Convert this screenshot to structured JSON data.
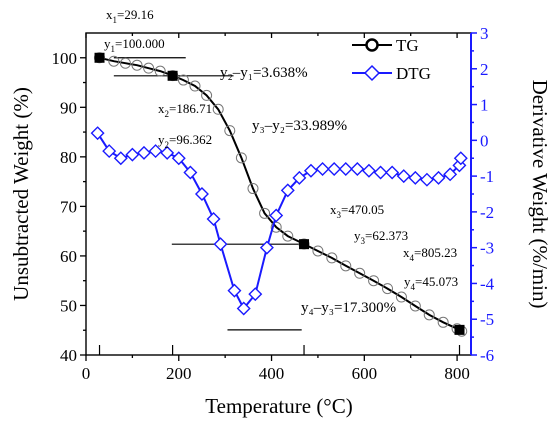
{
  "chart_data": {
    "type": "line",
    "xlabel": "Temperature (°C)",
    "ylabel_left": "Unsubtracted Weight (%)",
    "ylabel_right": "Derivative Weight (%/min)",
    "xlim": [
      0,
      830
    ],
    "ylim_left": [
      40,
      105
    ],
    "ylim_right": [
      -6,
      3
    ],
    "x_ticks": [
      0,
      200,
      400,
      600,
      800
    ],
    "y_left_ticks": [
      40,
      50,
      60,
      70,
      80,
      90,
      100
    ],
    "y_right_ticks": [
      -6,
      -5,
      -4,
      -3,
      -2,
      -1,
      0,
      1,
      2,
      3
    ],
    "colors": {
      "tg": "#000000",
      "dtg": "#1a1aff",
      "right_axis": "#1a1aff"
    },
    "series": [
      {
        "name": "TG",
        "axis": "left",
        "marker": "circle",
        "x": [
          29,
          60,
          85,
          110,
          135,
          160,
          187,
          210,
          235,
          260,
          285,
          310,
          335,
          360,
          385,
          410,
          435,
          470,
          500,
          530,
          560,
          590,
          620,
          650,
          680,
          710,
          740,
          770,
          800,
          810
        ],
        "y": [
          100,
          99.3,
          98.9,
          98.5,
          97.9,
          97.3,
          96.4,
          95.5,
          94.3,
          92.4,
          89.6,
          85.3,
          79.8,
          73.6,
          68.6,
          65.8,
          64.0,
          62.4,
          61.0,
          59.6,
          58.0,
          56.5,
          55.0,
          53.4,
          51.7,
          49.9,
          48.1,
          46.6,
          45.3,
          44.8
        ]
      },
      {
        "name": "DTG",
        "axis": "right",
        "marker": "diamond",
        "x": [
          25,
          50,
          75,
          100,
          125,
          150,
          175,
          200,
          225,
          250,
          275,
          290,
          320,
          340,
          365,
          390,
          410,
          435,
          460,
          485,
          510,
          535,
          560,
          585,
          610,
          635,
          660,
          685,
          710,
          735,
          760,
          785,
          805,
          808
        ],
        "y": [
          0.2,
          -0.3,
          -0.5,
          -0.4,
          -0.35,
          -0.3,
          -0.35,
          -0.5,
          -0.9,
          -1.5,
          -2.2,
          -2.9,
          -4.2,
          -4.7,
          -4.3,
          -3.0,
          -2.1,
          -1.4,
          -1.05,
          -0.85,
          -0.8,
          -0.8,
          -0.8,
          -0.8,
          -0.85,
          -0.9,
          -0.9,
          -1.0,
          -1.05,
          -1.1,
          -1.05,
          -0.95,
          -0.7,
          -0.5
        ]
      }
    ],
    "tangent_points": [
      {
        "x": 29.16,
        "y": 100.0
      },
      {
        "x": 186.71,
        "y": 96.362
      },
      {
        "x": 470.05,
        "y": 62.373
      },
      {
        "x": 805.23,
        "y": 45.073
      }
    ],
    "legend_position": "top-right",
    "annotations": {
      "x1": "x",
      "x1_sub": "1",
      "x1_val": "=29.16",
      "y1": "y",
      "y1_sub": "1",
      "y1_val": "=100.000",
      "x2": "x",
      "x2_sub": "2",
      "x2_val": "=186.71",
      "y2": "y",
      "y2_sub": "2",
      "y2_val": "=96.362",
      "x3": "x",
      "x3_sub": "3",
      "x3_val": "=470.05",
      "y3": "y",
      "y3_sub": "3",
      "y3_val": "=62.373",
      "x4": "x",
      "x4_sub": "4",
      "x4_val": "=805.23",
      "y4": "y",
      "y4_sub": "4",
      "y4_val": "=45.073",
      "d21": "y₂–y₁=3.638%",
      "d32": "y₃–y₂=33.989%",
      "d43": "y₄–y₃=17.300%"
    }
  }
}
